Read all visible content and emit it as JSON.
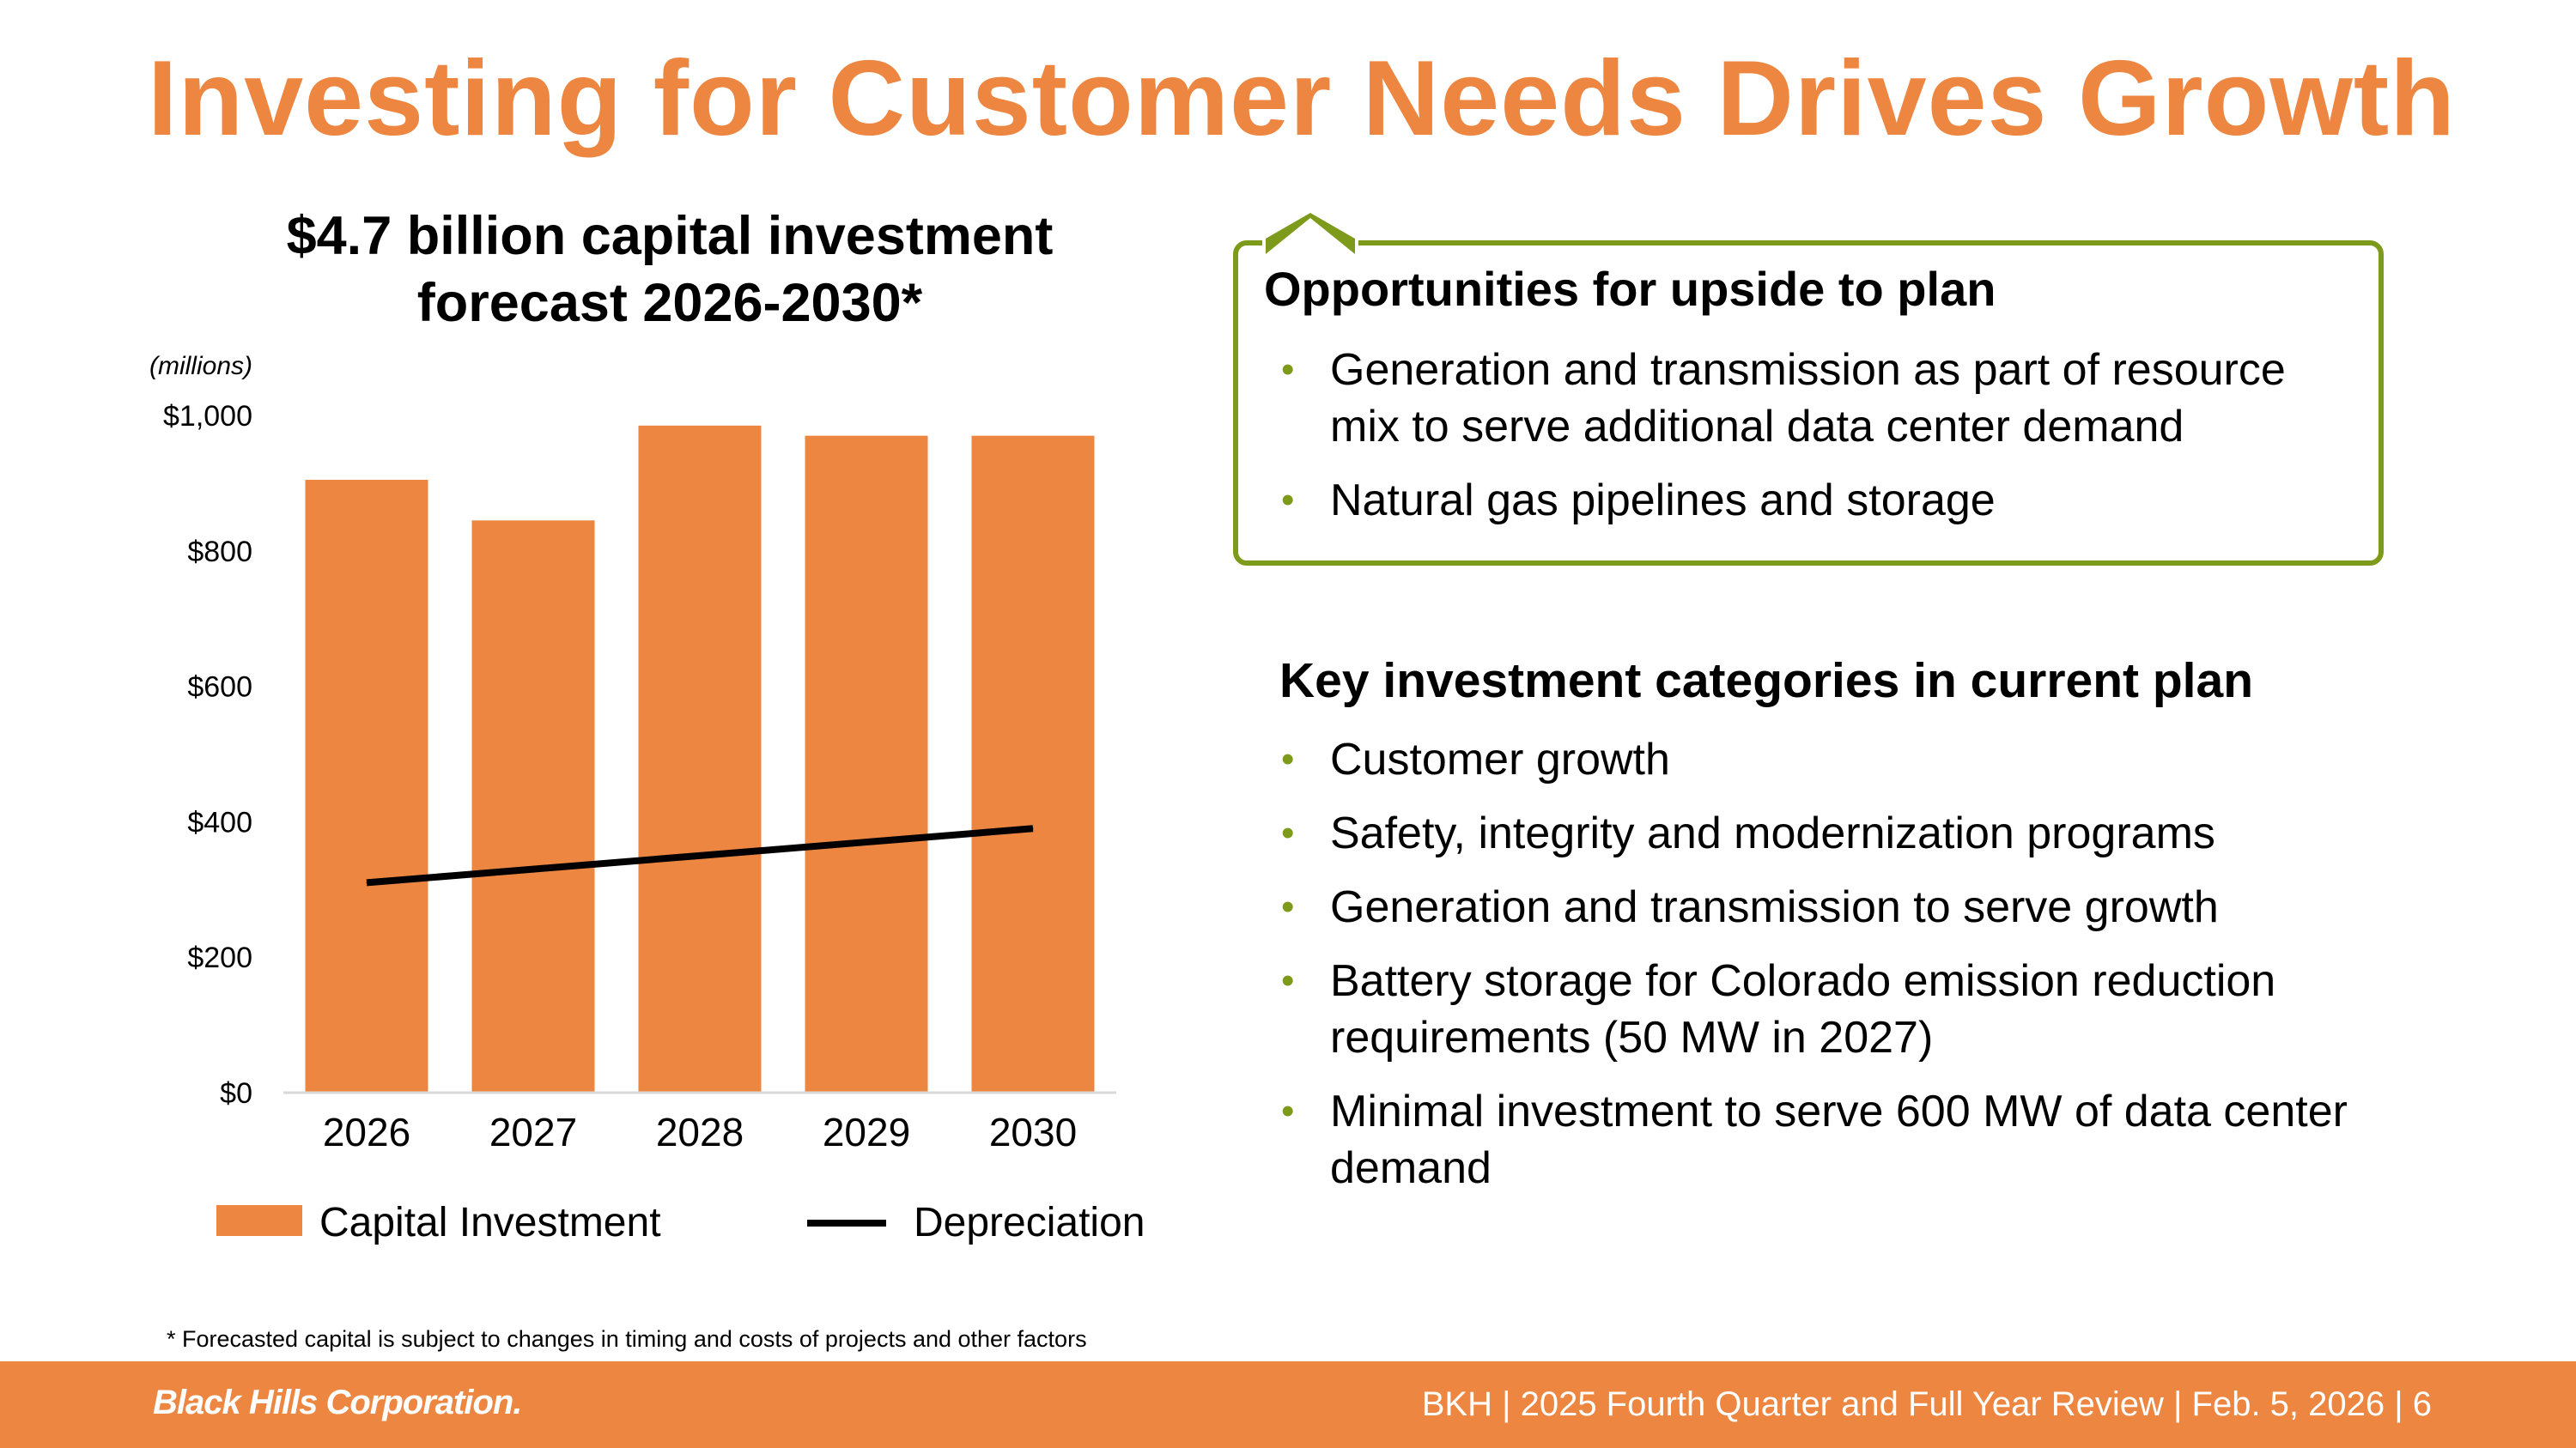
{
  "page": {
    "title": "Investing for Customer Needs Drives Growth"
  },
  "chart_data": {
    "type": "bar",
    "title": "$4.7 billion capital investment forecast 2026-2030*",
    "units_label": "(millions)",
    "categories": [
      "2026",
      "2027",
      "2028",
      "2029",
      "2030"
    ],
    "series": [
      {
        "name": "Capital Investment",
        "kind": "bar",
        "color": "#ED8641",
        "values": [
          905,
          845,
          985,
          970,
          970
        ]
      },
      {
        "name": "Depreciation",
        "kind": "line",
        "color": "#000000",
        "values": [
          310,
          330,
          350,
          370,
          390
        ]
      }
    ],
    "ylim": [
      0,
      1000
    ],
    "yticks": [
      0,
      200,
      400,
      600,
      800,
      1000
    ],
    "ytick_labels": [
      "$0",
      "$200",
      "$400",
      "$600",
      "$800",
      "$1,000"
    ],
    "grid": false,
    "legend_position": "bottom"
  },
  "upside": {
    "title": "Opportunities for upside to plan",
    "items": [
      "Generation and transmission as part of resource mix to serve additional data center demand",
      "Natural gas pipelines and storage"
    ]
  },
  "key": {
    "title": "Key investment categories in current plan",
    "items": [
      "Customer growth",
      "Safety, integrity and modernization programs",
      "Generation and transmission to serve growth",
      "Battery storage for Colorado emission reduction requirements (50 MW in 2027)",
      "Minimal investment to serve 600 MW of data center demand"
    ]
  },
  "bullet_glyph": "•",
  "footnote": "* Forecasted capital is subject to changes in timing and costs of projects and other factors",
  "footer": {
    "logo": "Black Hills Corporation.",
    "text": "BKH  |  2025 Fourth Quarter and Full Year Review  |  Feb. 5, 2026  |  6"
  },
  "colors": {
    "accent": "#ED8641",
    "green": "#7D9A1A"
  }
}
